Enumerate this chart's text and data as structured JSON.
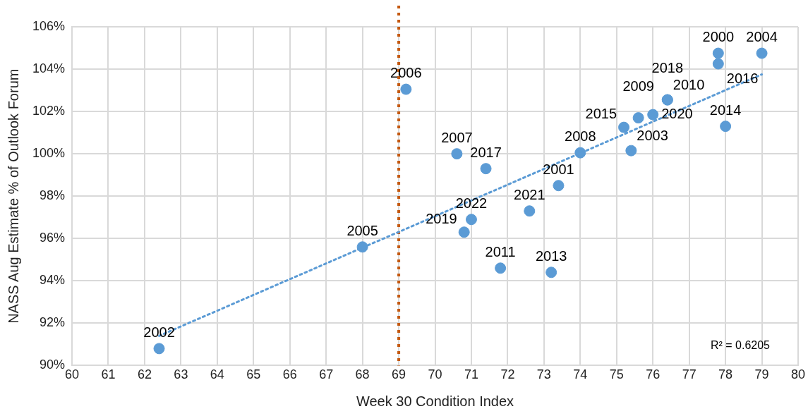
{
  "chart_data": {
    "type": "scatter",
    "xlabel": "Week 30 Condition Index",
    "ylabel": "NASS Aug Estimate % of Outlook Forum",
    "xlim": [
      60,
      80
    ],
    "xticks": [
      60,
      61,
      62,
      63,
      64,
      65,
      66,
      67,
      68,
      69,
      70,
      71,
      72,
      73,
      74,
      75,
      76,
      77,
      78,
      79,
      80
    ],
    "ylim": [
      90,
      106
    ],
    "yticks": [
      {
        "value": 90,
        "label": "90%"
      },
      {
        "value": 92,
        "label": "92%"
      },
      {
        "value": 94,
        "label": "94%"
      },
      {
        "value": 96,
        "label": "96%"
      },
      {
        "value": 98,
        "label": "98%"
      },
      {
        "value": 100,
        "label": "100%"
      },
      {
        "value": 102,
        "label": "102%"
      },
      {
        "value": 104,
        "label": "104%"
      },
      {
        "value": 106,
        "label": "106%"
      }
    ],
    "grid": true,
    "legend": false,
    "marker": "circle",
    "series": [
      {
        "color": "#5b9bd5",
        "x": [
          62.4,
          68.0,
          69.2,
          70.6,
          71.4,
          71.0,
          70.8,
          71.8,
          72.6,
          73.2,
          73.4,
          74.0,
          75.4,
          75.2,
          75.6,
          76.0,
          76.4,
          76.4,
          78.0,
          77.8,
          77.8,
          79.0
        ],
        "values": [
          90.8,
          95.6,
          103.05,
          100.0,
          99.3,
          96.9,
          96.3,
          94.6,
          97.3,
          94.4,
          98.5,
          100.05,
          100.15,
          101.25,
          101.7,
          101.85,
          102.55,
          102.55,
          101.3,
          104.75,
          104.25,
          104.75
        ]
      },
      {
        "type": "line",
        "color": "#5b9bd5",
        "x": [
          62.4,
          79.0
        ],
        "values": [
          91.4,
          103.75
        ],
        "marker": "none",
        "line_style": "dotted"
      }
    ],
    "ref_lines": [
      {
        "axis": "x",
        "value": 69,
        "color": "#c55a11",
        "line_style": "dotted"
      }
    ],
    "annotations": [
      {
        "text": "2002",
        "x": 62.4,
        "y": 90.8
      },
      {
        "text": "2005",
        "x": 68.0,
        "y": 95.6
      },
      {
        "text": "2006",
        "x": 69.2,
        "y": 103.05
      },
      {
        "text": "2007",
        "x": 70.6,
        "y": 100.0
      },
      {
        "text": "2017",
        "x": 71.4,
        "y": 99.3
      },
      {
        "text": "2022",
        "x": 71.0,
        "y": 96.9
      },
      {
        "text": "2019",
        "x": 70.8,
        "y": 96.3
      },
      {
        "text": "2011",
        "x": 71.8,
        "y": 94.6
      },
      {
        "text": "2021",
        "x": 72.6,
        "y": 97.3
      },
      {
        "text": "2013",
        "x": 73.2,
        "y": 94.4
      },
      {
        "text": "2001",
        "x": 73.4,
        "y": 98.5
      },
      {
        "text": "2008",
        "x": 74.0,
        "y": 100.05
      },
      {
        "text": "2003",
        "x": 75.4,
        "y": 100.15
      },
      {
        "text": "2015",
        "x": 75.2,
        "y": 101.25
      },
      {
        "text": "2009",
        "x": 75.6,
        "y": 101.7
      },
      {
        "text": "2020",
        "x": 76.0,
        "y": 101.85
      },
      {
        "text": "2010",
        "x": 76.4,
        "y": 102.55
      },
      {
        "text": "2018",
        "x": 76.4,
        "y": 102.55
      },
      {
        "text": "2014",
        "x": 78.0,
        "y": 101.3
      },
      {
        "text": "2000",
        "x": 77.8,
        "y": 104.75
      },
      {
        "text": "2016",
        "x": 77.8,
        "y": 104.25
      },
      {
        "text": "2004",
        "x": 79.0,
        "y": 104.75
      },
      "R² = 0.6205"
    ]
  }
}
